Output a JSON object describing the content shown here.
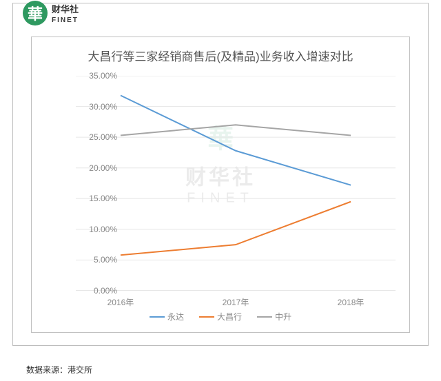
{
  "brand": {
    "badge_char": "華",
    "badge_bg": "#2e9960",
    "cn": "财华社",
    "en": "FINET"
  },
  "chart": {
    "type": "line",
    "title": "大昌行等三家经销商售后(及精品)业务收入增速对比",
    "title_fontsize": 17,
    "title_color": "#555555",
    "background_color": "#ffffff",
    "border_color": "#bfbfbf",
    "grid_color": "#e6e6e6",
    "axis_color": "#cccccc",
    "label_color": "#888888",
    "label_fontsize": 12,
    "ylim": [
      0,
      35
    ],
    "ytick_step": 5,
    "yticks": [
      "0.00%",
      "5.00%",
      "10.00%",
      "15.00%",
      "20.00%",
      "25.00%",
      "30.00%",
      "35.00%"
    ],
    "categories": [
      "2016年",
      "2017年",
      "2018年"
    ],
    "line_width": 2,
    "series": [
      {
        "name": "永达",
        "color": "#5b9bd5",
        "values": [
          31.8,
          22.8,
          17.2
        ]
      },
      {
        "name": "大昌行",
        "color": "#ed7d31",
        "values": [
          5.8,
          7.5,
          14.5
        ]
      },
      {
        "name": "中升",
        "color": "#a5a5a5",
        "values": [
          25.3,
          27.0,
          25.3
        ]
      }
    ]
  },
  "watermark": {
    "cn": "财华社",
    "en": "FINET"
  },
  "source": "数据来源：港交所"
}
